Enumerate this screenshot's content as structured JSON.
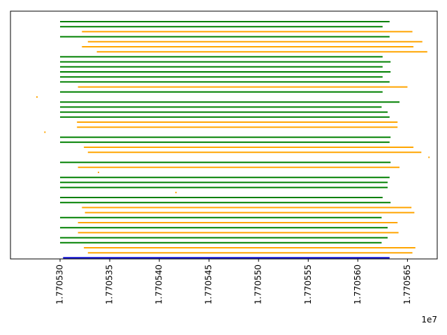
{
  "chart_data": {
    "type": "gantt-lines",
    "title": "",
    "xlabel": "",
    "ylabel": "",
    "x_offset_text": "1e7",
    "x_scale_factor": 10000000,
    "xlim": [
      1.770525,
      1.770568
    ],
    "x_ticks": [
      1.77053,
      1.770535,
      1.77054,
      1.770545,
      1.77055,
      1.770555,
      1.77056,
      1.770565
    ],
    "x_tick_labels": [
      "1.770530",
      "1.770535",
      "1.770540",
      "1.770545",
      "1.770550",
      "1.770555",
      "1.770560",
      "1.770565"
    ],
    "y_ticks_visible": false,
    "grid": false,
    "colors": {
      "green": "#008000",
      "orange": "#FFA500",
      "blue": "#0000CD"
    },
    "segments": [
      {
        "start": 1.77053,
        "end": 1.7705632,
        "color": "green"
      },
      {
        "start": 1.77053,
        "end": 1.7705625,
        "color": "green"
      },
      {
        "start": 1.7705322,
        "end": 1.7705655,
        "color": "orange"
      },
      {
        "start": 1.77053,
        "end": 1.7705632,
        "color": "green"
      },
      {
        "start": 1.7705328,
        "end": 1.7705665,
        "color": "orange"
      },
      {
        "start": 1.7705322,
        "end": 1.7705656,
        "color": "orange"
      },
      {
        "start": 1.7705337,
        "end": 1.770567,
        "color": "orange"
      },
      {
        "start": 1.77053,
        "end": 1.7705625,
        "color": "green"
      },
      {
        "start": 1.77053,
        "end": 1.7705633,
        "color": "green"
      },
      {
        "start": 1.77053,
        "end": 1.7705625,
        "color": "green"
      },
      {
        "start": 1.77053,
        "end": 1.7705633,
        "color": "green"
      },
      {
        "start": 1.77053,
        "end": 1.7705625,
        "color": "green"
      },
      {
        "start": 1.77053,
        "end": 1.7705632,
        "color": "green"
      },
      {
        "start": 1.7705318,
        "end": 1.770565,
        "color": "orange"
      },
      {
        "start": 1.77053,
        "end": 1.7705625,
        "color": "green"
      },
      {
        "start": 1.7705276,
        "end": 1.7705277,
        "color": "orange"
      },
      {
        "start": 1.77053,
        "end": 1.7705642,
        "color": "green"
      },
      {
        "start": 1.77053,
        "end": 1.7705624,
        "color": "green"
      },
      {
        "start": 1.77053,
        "end": 1.770563,
        "color": "green"
      },
      {
        "start": 1.77053,
        "end": 1.7705632,
        "color": "green"
      },
      {
        "start": 1.7705317,
        "end": 1.770564,
        "color": "orange"
      },
      {
        "start": 1.7705317,
        "end": 1.770564,
        "color": "orange"
      },
      {
        "start": 1.7705284,
        "end": 1.7705285,
        "color": "orange"
      },
      {
        "start": 1.77053,
        "end": 1.7705633,
        "color": "green"
      },
      {
        "start": 1.77053,
        "end": 1.7705632,
        "color": "green"
      },
      {
        "start": 1.7705324,
        "end": 1.7705656,
        "color": "orange"
      },
      {
        "start": 1.7705328,
        "end": 1.7705664,
        "color": "orange"
      },
      {
        "start": 1.7705671,
        "end": 1.7705672,
        "color": "orange"
      },
      {
        "start": 1.77053,
        "end": 1.7705633,
        "color": "green"
      },
      {
        "start": 1.7705318,
        "end": 1.7705642,
        "color": "orange"
      },
      {
        "start": 1.7705338,
        "end": 1.7705339,
        "color": "orange"
      },
      {
        "start": 1.77053,
        "end": 1.7705632,
        "color": "green"
      },
      {
        "start": 1.77053,
        "end": 1.770563,
        "color": "green"
      },
      {
        "start": 1.77053,
        "end": 1.770563,
        "color": "green"
      },
      {
        "start": 1.7705416,
        "end": 1.7705417,
        "color": "orange"
      },
      {
        "start": 1.77053,
        "end": 1.7705625,
        "color": "green"
      },
      {
        "start": 1.77053,
        "end": 1.7705633,
        "color": "green"
      },
      {
        "start": 1.7705322,
        "end": 1.7705654,
        "color": "orange"
      },
      {
        "start": 1.7705325,
        "end": 1.7705657,
        "color": "orange"
      },
      {
        "start": 1.77053,
        "end": 1.7705624,
        "color": "green"
      },
      {
        "start": 1.7705318,
        "end": 1.770564,
        "color": "orange"
      },
      {
        "start": 1.77053,
        "end": 1.770563,
        "color": "green"
      },
      {
        "start": 1.7705318,
        "end": 1.7705641,
        "color": "orange"
      },
      {
        "start": 1.77053,
        "end": 1.770563,
        "color": "green"
      },
      {
        "start": 1.77053,
        "end": 1.7705624,
        "color": "green"
      },
      {
        "start": 1.7705324,
        "end": 1.7705658,
        "color": "orange"
      },
      {
        "start": 1.7705328,
        "end": 1.7705655,
        "color": "orange"
      },
      {
        "start": 1.7705303,
        "end": 1.7705632,
        "color": "blue"
      }
    ]
  }
}
